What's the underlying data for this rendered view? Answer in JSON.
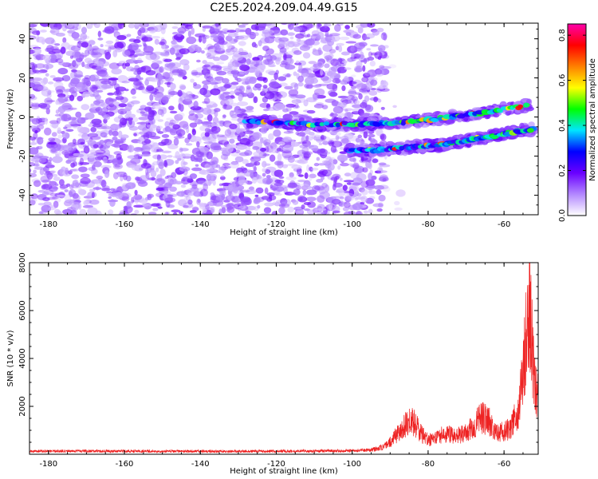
{
  "figure": {
    "title": "C2E5.2024.209.04.49.G15"
  },
  "chart_data": [
    {
      "type": "heatmap",
      "xlabel": "Height of straight line (km)",
      "ylabel": "Frequency (Hz)",
      "xlim": [
        -185,
        -51
      ],
      "ylim": [
        -50,
        48
      ],
      "x_ticks": [
        -180,
        -160,
        -140,
        -120,
        -100,
        -80,
        -60
      ],
      "y_ticks": [
        -40,
        -20,
        0,
        20,
        40
      ],
      "colorbar": {
        "label": "Normalized spectral amplitude",
        "range": [
          0.0,
          0.85
        ],
        "ticks": [
          0.0,
          0.2,
          0.4,
          0.6,
          0.8
        ],
        "colormap": [
          "#ffffff",
          "#b388ff",
          "#6a00ff",
          "#0000ff",
          "#00e5ff",
          "#00ff00",
          "#ffff00",
          "#ff8000",
          "#ff0000",
          "#ff00aa"
        ]
      },
      "noise_region": {
        "x_range": [
          -185,
          -91
        ],
        "y_range": [
          -50,
          48
        ],
        "typical_amplitude": 0.1
      },
      "tracks": [
        {
          "points": [
            [
              -128,
              -2
            ],
            [
              -110,
              -4
            ],
            [
              -98,
              -3.5
            ],
            [
              -90,
              -3
            ],
            [
              -84,
              -2.5
            ],
            [
              -78,
              -1
            ],
            [
              -72,
              0.5
            ],
            [
              -66,
              2
            ],
            [
              -60,
              4
            ],
            [
              -53,
              6
            ]
          ],
          "peak_amplitude": 0.8
        },
        {
          "points": [
            [
              -101,
              -17
            ],
            [
              -94,
              -17
            ],
            [
              -88,
              -16
            ],
            [
              -82,
              -15
            ],
            [
              -76,
              -14
            ],
            [
              -70,
              -12
            ],
            [
              -64,
              -10
            ],
            [
              -58,
              -8
            ],
            [
              -52,
              -6
            ]
          ],
          "peak_amplitude": 0.75
        }
      ]
    },
    {
      "type": "line",
      "xlabel": "Height of straight line (km)",
      "ylabel": "SNR (10 * v/v)",
      "xlim": [
        -185,
        -51
      ],
      "ylim": [
        0,
        8000
      ],
      "x_ticks": [
        -180,
        -160,
        -140,
        -120,
        -100,
        -80,
        -60
      ],
      "y_ticks": [
        2000,
        4000,
        6000,
        8000
      ],
      "color": "#ee2222",
      "envelope": {
        "x": [
          -185,
          -170,
          -150,
          -130,
          -110,
          -100,
          -95,
          -92,
          -90,
          -88,
          -86,
          -84,
          -82,
          -80,
          -78,
          -76,
          -74,
          -72,
          -70,
          -68,
          -66,
          -64,
          -62,
          -60,
          -58,
          -56,
          -55,
          -54,
          -53.5,
          -53,
          -52,
          -51
        ],
        "y": [
          150,
          160,
          150,
          150,
          160,
          180,
          220,
          350,
          600,
          1100,
          1500,
          1700,
          1100,
          700,
          900,
          1000,
          1000,
          950,
          1100,
          1400,
          1900,
          1700,
          1200,
          1100,
          1400,
          2400,
          4000,
          6500,
          7600,
          6800,
          3500,
          3000
        ]
      }
    }
  ]
}
